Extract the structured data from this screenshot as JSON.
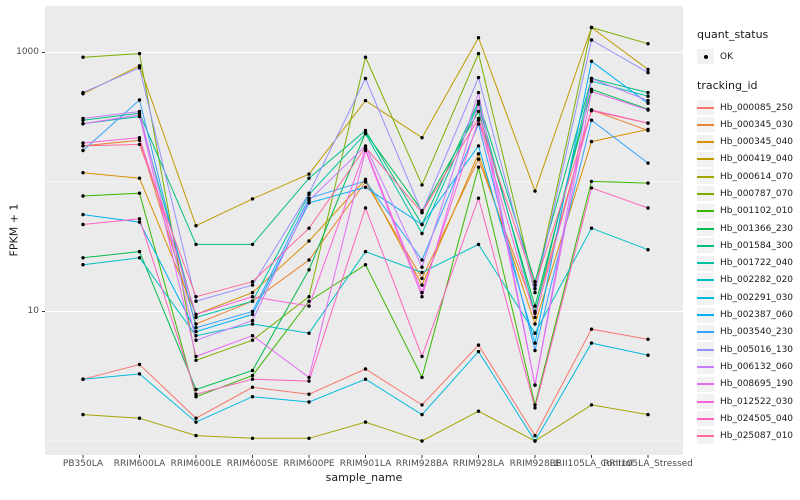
{
  "chart_data": {
    "type": "line",
    "title": "",
    "xlabel": "sample_name",
    "ylabel": "FPKM + 1",
    "y_scale": "log10",
    "y_major_ticks": [
      10,
      1000
    ],
    "y_minor_gridlines": [
      1,
      100
    ],
    "grid": true,
    "legend_position": "right",
    "point_color": "#000000",
    "panel_bg": "#ebebeb",
    "grid_color": "#ffffff",
    "categories": [
      "PB350LA",
      "RRIM600LA",
      "RRIM600LE",
      "RRIM600SE",
      "RRIM600PE",
      "RRIM901LA",
      "RRIM928BA",
      "RRIM928LA",
      "RRIM928LE",
      "RRII105LA_Control",
      "RRII105LA_Stressed"
    ],
    "series": [
      {
        "name": "Hb_000085_250",
        "color": "#F8766D",
        "values": [
          3.0,
          3.9,
          1.5,
          2.6,
          2.3,
          3.6,
          1.9,
          5.5,
          1.1,
          7.3,
          6.1
        ]
      },
      {
        "name": "Hb_000345_030",
        "color": "#EA8331",
        "values": [
          190,
          210,
          8,
          12,
          25,
          100,
          18,
          150,
          10,
          360,
          250
        ]
      },
      {
        "name": "Hb_000345_040",
        "color": "#D89000",
        "values": [
          118,
          107,
          9.5,
          14,
          35,
          105,
          16,
          165,
          8,
          205,
          255
        ]
      },
      {
        "name": "Hb_000419_040",
        "color": "#C09B00",
        "values": [
          480,
          790,
          46,
          74,
          115,
          425,
          220,
          1300,
          85,
          1560,
          740
        ]
      },
      {
        "name": "Hb_000614_070",
        "color": "#A3A500",
        "values": [
          1.6,
          1.5,
          1.1,
          1.05,
          1.05,
          1.4,
          1.0,
          1.7,
          1.0,
          1.9,
          1.6
        ]
      },
      {
        "name": "Hb_000787_070",
        "color": "#7CAE00",
        "values": [
          920,
          980,
          4.2,
          6,
          13,
          920,
          95,
          980,
          15,
          1560,
          1170
        ]
      },
      {
        "name": "Hb_001102_010",
        "color": "#39B600",
        "values": [
          78,
          82,
          2.2,
          3.2,
          12,
          23,
          3.1,
          130,
          1.9,
          101,
          98
        ]
      },
      {
        "name": "Hb_001366_230",
        "color": "#00BB4E",
        "values": [
          26,
          29,
          2.5,
          3.5,
          21,
          240,
          60,
          350,
          11,
          520,
          365
        ]
      },
      {
        "name": "Hb_001584_300",
        "color": "#00BF7D",
        "values": [
          300,
          340,
          33,
          33,
          107,
          250,
          47,
          420,
          17,
          630,
          490
        ]
      },
      {
        "name": "Hb_001722_040",
        "color": "#00C1A3",
        "values": [
          282,
          320,
          9,
          12,
          80,
          236,
          40,
          400,
          9.7,
          600,
          460
        ]
      },
      {
        "name": "Hb_002282_020",
        "color": "#00BFC4",
        "values": [
          23,
          26,
          6.5,
          8,
          6.8,
          29,
          20,
          33,
          6.8,
          44,
          30
        ]
      },
      {
        "name": "Hb_002291_030",
        "color": "#00BAE0",
        "values": [
          3.0,
          3.3,
          1.4,
          2.2,
          2.0,
          3.0,
          1.6,
          4.9,
          1.0,
          5.7,
          4.6
        ]
      },
      {
        "name": "Hb_002387_060",
        "color": "#00B0F6",
        "values": [
          56,
          49,
          7,
          9.5,
          69,
          91,
          47,
          190,
          5.7,
          855,
          405
        ]
      },
      {
        "name": "Hb_003540_230",
        "color": "#35A2FF",
        "values": [
          175,
          430,
          7.5,
          10,
          75,
          102,
          25,
          280,
          5,
          300,
          140
        ]
      },
      {
        "name": "Hb_005016_130",
        "color": "#9590FF",
        "values": [
          490,
          760,
          12,
          16,
          82,
          630,
          58,
          640,
          14,
          1250,
          700
        ]
      },
      {
        "name": "Hb_006132_060",
        "color": "#C77CFF",
        "values": [
          310,
          350,
          6,
          8.5,
          72,
          190,
          22,
          490,
          2.7,
          630,
          425
        ]
      },
      {
        "name": "Hb_008695_190",
        "color": "#E76BF3",
        "values": [
          282,
          330,
          4.5,
          6.5,
          3.1,
          175,
          13,
          400,
          2.7,
          500,
          360
        ]
      },
      {
        "name": "Hb_012522_030",
        "color": "#FA62DB",
        "values": [
          200,
          220,
          9.5,
          13,
          11,
          180,
          14,
          300,
          9,
          360,
          285
        ]
      },
      {
        "name": "Hb_024505_040",
        "color": "#FF62BC",
        "values": [
          47,
          52,
          2.3,
          3.0,
          2.9,
          63,
          4.5,
          75,
          1.8,
          90,
          63
        ]
      },
      {
        "name": "Hb_025087_010",
        "color": "#FF6A98",
        "values": [
          190,
          195,
          13,
          17,
          44,
          185,
          58,
          310,
          16,
          355,
          285
        ]
      }
    ]
  },
  "legend": {
    "quant_status": {
      "title": "quant_status",
      "items": [
        {
          "label": "OK",
          "symbol": "point"
        }
      ]
    },
    "tracking_id": {
      "title": "tracking_id"
    }
  },
  "colors": {
    "panel_bg": "#ebebeb",
    "gridline": "#ffffff",
    "legend_key_bg": "#f2f2f2",
    "tick_text": "#4d4d4d",
    "tick_mark": "#333333"
  }
}
